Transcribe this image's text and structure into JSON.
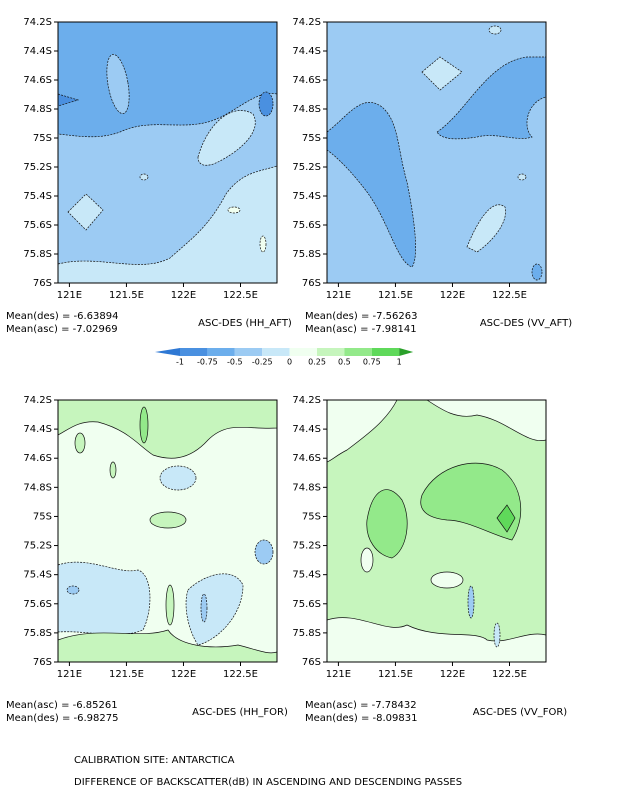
{
  "chart_data": [
    {
      "type": "contour",
      "title": "ASC-DES (HH_AFT)",
      "stats": [
        "Mean(des) = -6.63894",
        "Mean(asc) = -7.02969"
      ],
      "xlim": [
        120.9,
        122.82
      ],
      "xticks": [
        {
          "value": 121,
          "label": "121E"
        },
        {
          "value": 121.5,
          "label": "121.5E"
        },
        {
          "value": 122,
          "label": "122E"
        },
        {
          "value": 122.5,
          "label": "122.5E"
        }
      ],
      "ylim": [
        -76,
        -74.2
      ],
      "yticks": [
        {
          "value": -74.2,
          "label": "74.2S"
        },
        {
          "value": -74.4,
          "label": "74.4S"
        },
        {
          "value": -74.6,
          "label": "74.6S"
        },
        {
          "value": -74.8,
          "label": "74.8S"
        },
        {
          "value": -75,
          "label": "75S"
        },
        {
          "value": -75.2,
          "label": "75.2S"
        },
        {
          "value": -75.4,
          "label": "75.4S"
        },
        {
          "value": -75.6,
          "label": "75.6S"
        },
        {
          "value": -75.8,
          "label": "75.8S"
        },
        {
          "value": -76,
          "label": "76S"
        }
      ]
    },
    {
      "type": "contour",
      "title": "ASC-DES (VV_AFT)",
      "stats": [
        "Mean(des) = -7.56263",
        "Mean(asc) = -7.98141"
      ],
      "xlim": [
        120.9,
        122.82
      ],
      "xticks": [
        {
          "value": 121,
          "label": "121E"
        },
        {
          "value": 121.5,
          "label": "121.5E"
        },
        {
          "value": 122,
          "label": "122E"
        },
        {
          "value": 122.5,
          "label": "122.5E"
        }
      ],
      "ylim": [
        -76,
        -74.2
      ],
      "yticks": [
        {
          "value": -74.2,
          "label": "74.2S"
        },
        {
          "value": -74.4,
          "label": "74.4S"
        },
        {
          "value": -74.6,
          "label": "74.6S"
        },
        {
          "value": -74.8,
          "label": "74.8S"
        },
        {
          "value": -75,
          "label": "75S"
        },
        {
          "value": -75.2,
          "label": "75.2S"
        },
        {
          "value": -75.4,
          "label": "75.4S"
        },
        {
          "value": -75.6,
          "label": "75.6S"
        },
        {
          "value": -75.8,
          "label": "75.8S"
        },
        {
          "value": -76,
          "label": "76S"
        }
      ]
    },
    {
      "type": "contour",
      "title": "ASC-DES (HH_FOR)",
      "stats": [
        "Mean(asc) = -6.85261",
        "Mean(des) = -6.98275"
      ],
      "xlim": [
        120.9,
        122.82
      ],
      "xticks": [
        {
          "value": 121,
          "label": "121E"
        },
        {
          "value": 121.5,
          "label": "121.5E"
        },
        {
          "value": 122,
          "label": "122E"
        },
        {
          "value": 122.5,
          "label": "122.5E"
        }
      ],
      "ylim": [
        -76,
        -74.2
      ],
      "yticks": [
        {
          "value": -74.2,
          "label": "74.2S"
        },
        {
          "value": -74.4,
          "label": "74.4S"
        },
        {
          "value": -74.6,
          "label": "74.6S"
        },
        {
          "value": -74.8,
          "label": "74.8S"
        },
        {
          "value": -75,
          "label": "75S"
        },
        {
          "value": -75.2,
          "label": "75.2S"
        },
        {
          "value": -75.4,
          "label": "75.4S"
        },
        {
          "value": -75.6,
          "label": "75.6S"
        },
        {
          "value": -75.8,
          "label": "75.8S"
        },
        {
          "value": -76,
          "label": "76S"
        }
      ]
    },
    {
      "type": "contour",
      "title": "ASC-DES (VV_FOR)",
      "stats": [
        "Mean(asc) = -7.78432",
        "Mean(des) = -8.09831"
      ],
      "xlim": [
        120.9,
        122.82
      ],
      "xticks": [
        {
          "value": 121,
          "label": "121E"
        },
        {
          "value": 121.5,
          "label": "121.5E"
        },
        {
          "value": 122,
          "label": "122E"
        },
        {
          "value": 122.5,
          "label": "122.5E"
        }
      ],
      "ylim": [
        -76,
        -74.2
      ],
      "yticks": [
        {
          "value": -74.2,
          "label": "74.2S"
        },
        {
          "value": -74.4,
          "label": "74.4S"
        },
        {
          "value": -74.6,
          "label": "74.6S"
        },
        {
          "value": -74.8,
          "label": "74.8S"
        },
        {
          "value": -75,
          "label": "75S"
        },
        {
          "value": -75.2,
          "label": "75.2S"
        },
        {
          "value": -75.4,
          "label": "75.4S"
        },
        {
          "value": -75.6,
          "label": "75.6S"
        },
        {
          "value": -75.8,
          "label": "75.8S"
        },
        {
          "value": -76,
          "label": "76S"
        }
      ]
    }
  ],
  "colorbar": {
    "levels": [
      -1,
      -0.75,
      -0.5,
      -0.25,
      0,
      0.25,
      0.5,
      0.75,
      1
    ],
    "colors": [
      "#2e78d4",
      "#4a90e0",
      "#6caeec",
      "#9ccbf3",
      "#c8e8f8",
      "#f0fff0",
      "#c6f5bd",
      "#93e98a",
      "#5fd95a",
      "#2aa02a"
    ]
  },
  "footer": [
    "CALIBRATION SITE: ANTARCTICA",
    "DIFFERENCE OF BACKSCATTER(dB) IN ASCENDING AND DESCENDING PASSES"
  ]
}
